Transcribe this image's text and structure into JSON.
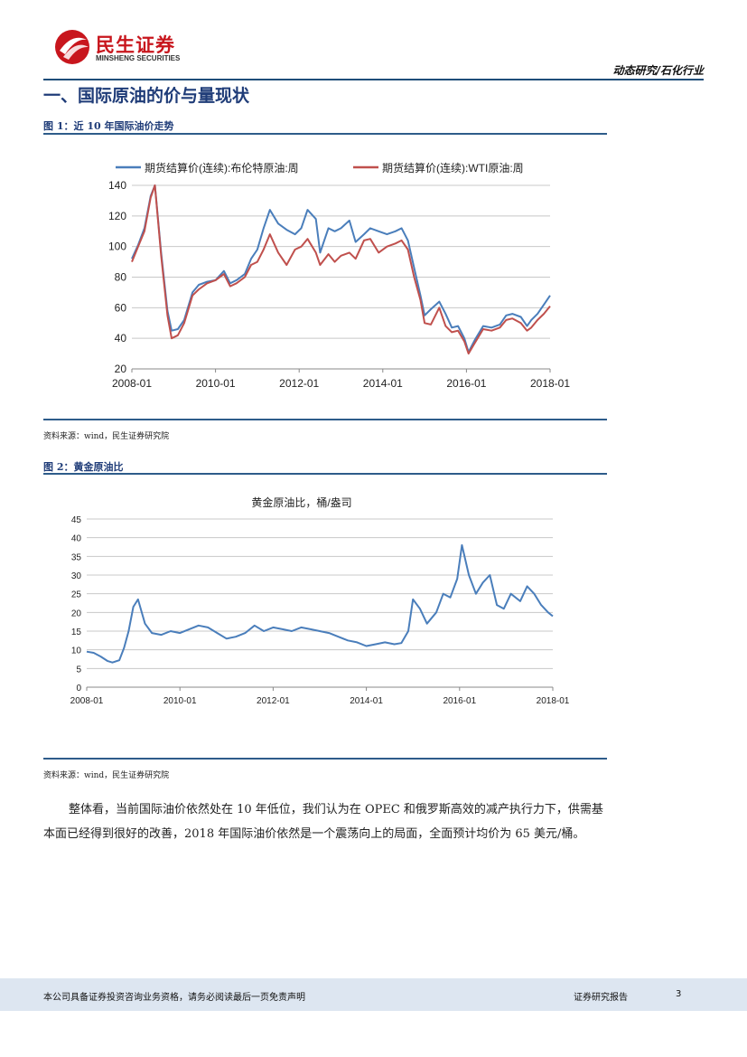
{
  "header": {
    "company_cn": "民生证券",
    "company_en": "MINSHENG SECURITIES",
    "category": "动态研究/石化行业",
    "brand_color": "#c8161d"
  },
  "section": {
    "title": "一、国际原油的价与量现状"
  },
  "figure1": {
    "title": "图 1：近 10 年国际油价走势",
    "source": "资料来源：wind，民生证券研究院"
  },
  "figure2": {
    "title": "图 2：黄金原油比",
    "source": "资料来源：wind，民生证券研究院"
  },
  "body": {
    "paragraph": "整体看，当前国际油价依然处在 10 年低位，我们认为在 OPEC 和俄罗斯高效的减产执行力下，供需基本面已经得到很好的改善，2018 年国际油价依然是一个震荡向上的局面，全面预计均价为 65 美元/桶。"
  },
  "footer": {
    "disclaimer": "本公司具备证券投资咨询业务资格，请务必阅读最后一页免责声明",
    "report_type": "证券研究报告",
    "page_number": "3"
  },
  "chart_data": [
    {
      "type": "line",
      "title": "",
      "xlabel": "",
      "ylabel": "",
      "xlim": [
        2008.0,
        2018.0
      ],
      "ylim": [
        20,
        140
      ],
      "yticks": [
        "20",
        "40",
        "60",
        "80",
        "100",
        "120",
        "140"
      ],
      "xticks": [
        "2008-01",
        "2010-01",
        "2012-01",
        "2014-01",
        "2016-01",
        "2018-01"
      ],
      "legend_position": "top",
      "series": [
        {
          "name": "期货结算价(连续):布伦特原油:周",
          "color": "#4a7ebb",
          "x": [
            2008.0,
            2008.15,
            2008.3,
            2008.45,
            2008.55,
            2008.7,
            2008.85,
            2008.95,
            2009.1,
            2009.25,
            2009.45,
            2009.6,
            2009.8,
            2010.0,
            2010.2,
            2010.35,
            2010.5,
            2010.7,
            2010.85,
            2011.0,
            2011.15,
            2011.3,
            2011.5,
            2011.7,
            2011.9,
            2012.05,
            2012.2,
            2012.4,
            2012.5,
            2012.7,
            2012.85,
            2013.0,
            2013.2,
            2013.35,
            2013.55,
            2013.7,
            2013.9,
            2014.1,
            2014.3,
            2014.45,
            2014.6,
            2014.75,
            2014.9,
            2015.0,
            2015.15,
            2015.35,
            2015.5,
            2015.65,
            2015.8,
            2015.95,
            2016.05,
            2016.2,
            2016.4,
            2016.6,
            2016.8,
            2016.95,
            2017.1,
            2017.3,
            2017.45,
            2017.55,
            2017.7,
            2017.85,
            2018.0
          ],
          "values": [
            92,
            101,
            112,
            133,
            140,
            96,
            58,
            45,
            46,
            52,
            70,
            75,
            77,
            78,
            84,
            76,
            78,
            82,
            92,
            98,
            112,
            124,
            115,
            111,
            108,
            112,
            124,
            118,
            96,
            112,
            110,
            112,
            117,
            103,
            108,
            112,
            110,
            108,
            110,
            112,
            104,
            86,
            68,
            55,
            59,
            64,
            56,
            47,
            48,
            40,
            31,
            39,
            48,
            47,
            49,
            55,
            56,
            54,
            48,
            52,
            56,
            62,
            68
          ]
        },
        {
          "name": "期货结算价(连续):WTI原油:周",
          "color": "#c0504d",
          "x": [
            2008.0,
            2008.15,
            2008.3,
            2008.45,
            2008.55,
            2008.7,
            2008.85,
            2008.95,
            2009.1,
            2009.25,
            2009.45,
            2009.6,
            2009.8,
            2010.0,
            2010.2,
            2010.35,
            2010.5,
            2010.7,
            2010.85,
            2011.0,
            2011.15,
            2011.3,
            2011.5,
            2011.7,
            2011.9,
            2012.05,
            2012.2,
            2012.4,
            2012.5,
            2012.7,
            2012.85,
            2013.0,
            2013.2,
            2013.35,
            2013.55,
            2013.7,
            2013.9,
            2014.1,
            2014.3,
            2014.45,
            2014.6,
            2014.75,
            2014.9,
            2015.0,
            2015.15,
            2015.35,
            2015.5,
            2015.65,
            2015.8,
            2015.95,
            2016.05,
            2016.2,
            2016.4,
            2016.6,
            2016.8,
            2016.95,
            2017.1,
            2017.3,
            2017.45,
            2017.55,
            2017.7,
            2017.85,
            2018.0
          ],
          "values": [
            90,
            100,
            110,
            132,
            140,
            94,
            55,
            40,
            42,
            50,
            68,
            72,
            76,
            78,
            82,
            74,
            76,
            80,
            88,
            90,
            98,
            108,
            96,
            88,
            98,
            100,
            105,
            96,
            88,
            95,
            90,
            94,
            96,
            92,
            104,
            105,
            96,
            100,
            102,
            104,
            98,
            80,
            65,
            50,
            49,
            60,
            48,
            44,
            45,
            38,
            30,
            37,
            46,
            45,
            47,
            52,
            53,
            50,
            45,
            47,
            52,
            56,
            61
          ]
        }
      ]
    },
    {
      "type": "line",
      "title": "黄金原油比，桶/盎司",
      "xlabel": "",
      "ylabel": "",
      "xlim": [
        2008.0,
        2018.0
      ],
      "ylim": [
        0,
        45
      ],
      "yticks": [
        "0",
        "5",
        "10",
        "15",
        "20",
        "25",
        "30",
        "35",
        "40",
        "45"
      ],
      "xticks": [
        "2008-01",
        "2010-01",
        "2012-01",
        "2014-01",
        "2016-01",
        "2018-01"
      ],
      "series": [
        {
          "name": "黄金原油比",
          "color": "#4a7ebb",
          "x": [
            2008.0,
            2008.15,
            2008.3,
            2008.45,
            2008.55,
            2008.7,
            2008.8,
            2008.9,
            2009.0,
            2009.1,
            2009.25,
            2009.4,
            2009.6,
            2009.8,
            2010.0,
            2010.2,
            2010.4,
            2010.6,
            2010.8,
            2011.0,
            2011.2,
            2011.4,
            2011.6,
            2011.8,
            2012.0,
            2012.2,
            2012.4,
            2012.6,
            2012.8,
            2013.0,
            2013.2,
            2013.4,
            2013.6,
            2013.8,
            2014.0,
            2014.2,
            2014.4,
            2014.6,
            2014.75,
            2014.9,
            2015.0,
            2015.15,
            2015.3,
            2015.5,
            2015.65,
            2015.8,
            2015.95,
            2016.05,
            2016.2,
            2016.35,
            2016.5,
            2016.65,
            2016.8,
            2016.95,
            2017.1,
            2017.3,
            2017.45,
            2017.6,
            2017.75,
            2017.9,
            2018.0
          ],
          "values": [
            9.5,
            9.2,
            8.2,
            7.0,
            6.6,
            7.2,
            10.5,
            15.0,
            21.5,
            23.5,
            17.0,
            14.5,
            14.0,
            15.0,
            14.5,
            15.5,
            16.5,
            16.0,
            14.5,
            13.0,
            13.5,
            14.5,
            16.5,
            15.0,
            16.0,
            15.5,
            15.0,
            16.0,
            15.5,
            15.0,
            14.5,
            13.5,
            12.5,
            12.0,
            11.0,
            11.5,
            12.0,
            11.5,
            11.8,
            15.0,
            23.5,
            21.0,
            17.0,
            20.0,
            25.0,
            24.0,
            29.0,
            38.0,
            30.0,
            25.0,
            28.0,
            30.0,
            22.0,
            21.0,
            25.0,
            23.0,
            27.0,
            25.0,
            22.0,
            20.0,
            19.0
          ]
        }
      ]
    }
  ]
}
